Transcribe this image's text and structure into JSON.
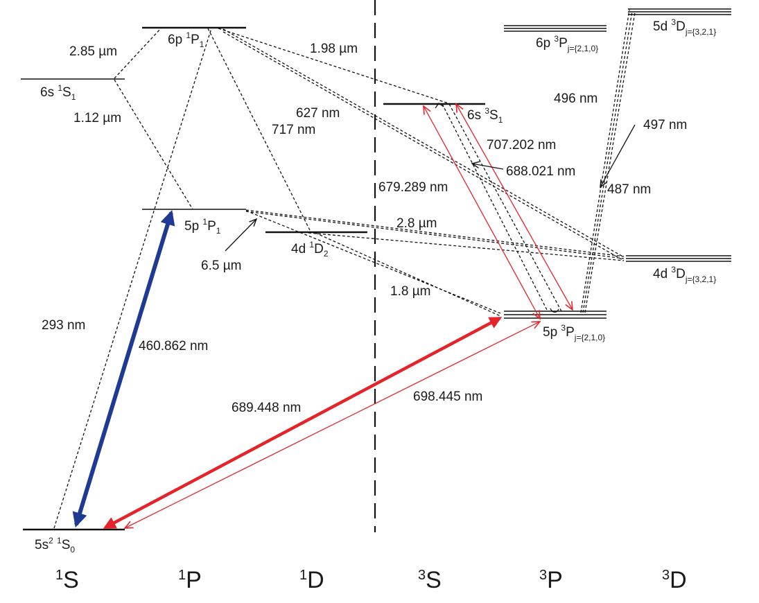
{
  "columns": {
    "c1S": {
      "sup": "1",
      "main": "S"
    },
    "c1P": {
      "sup": "1",
      "main": "P"
    },
    "c1D": {
      "sup": "1",
      "main": "D"
    },
    "c3S": {
      "sup": "3",
      "main": "S"
    },
    "c3P": {
      "sup": "3",
      "main": "P"
    },
    "c3D": {
      "sup": "3",
      "main": "D"
    }
  },
  "levels": {
    "ground": {
      "pre": "5s",
      "sq": "2",
      "mid": " ",
      "sup": "1",
      "term": "S",
      "sub": "0"
    },
    "p6_1P1": {
      "pre": "6p ",
      "sup": "1",
      "term": "P",
      "sub": "1"
    },
    "s6_1S1": {
      "pre": "6s ",
      "sup": "1",
      "term": "S",
      "sub": "1"
    },
    "p5_1P1": {
      "pre": "5p ",
      "sup": "1",
      "term": "P",
      "sub": "1"
    },
    "d4_1D2": {
      "pre": "4d ",
      "sup": "1",
      "term": "D",
      "sub": "2"
    },
    "s6_3S1": {
      "pre": "6s ",
      "sup": "3",
      "term": "S",
      "sub": "1"
    },
    "p6_3P": {
      "pre": "6p ",
      "sup": "3",
      "term": "P",
      "sub": "j={2,1,0}"
    },
    "d5_3D": {
      "pre": "5d ",
      "sup": "3",
      "term": "D",
      "sub": "j={3,2,1}"
    },
    "d4_3D": {
      "pre": "4d ",
      "sup": "3",
      "term": "D",
      "sub": "j={3,2,1}"
    },
    "p5_3P": {
      "pre": "5p ",
      "sup": "3",
      "term": "P",
      "sub": "j={2,1,0}"
    }
  },
  "transitions": {
    "t_285um": "2.85 µm",
    "t_112um": "1.12 µm",
    "t_198um": "1.98 µm",
    "t_627nm": "627 nm",
    "t_717nm": "717 nm",
    "t_496nm": "496 nm",
    "t_497nm": "497 nm",
    "t_707nm": "707.202 nm",
    "t_688nm": "688.021 nm",
    "t_679nm": "679.289 nm",
    "t_487nm": "487 nm",
    "t_28um": "2.8 µm",
    "t_65um": "6.5 µm",
    "t_18um": "1.8 µm",
    "t_293nm": "293 nm",
    "t_460nm": "460.862 nm",
    "t_689nm": "689.448 nm",
    "t_698nm": "698.445 nm"
  },
  "colors": {
    "blue_arrow": "#1f3a93",
    "red_arrow": "#e4232a",
    "line": "#111111"
  }
}
